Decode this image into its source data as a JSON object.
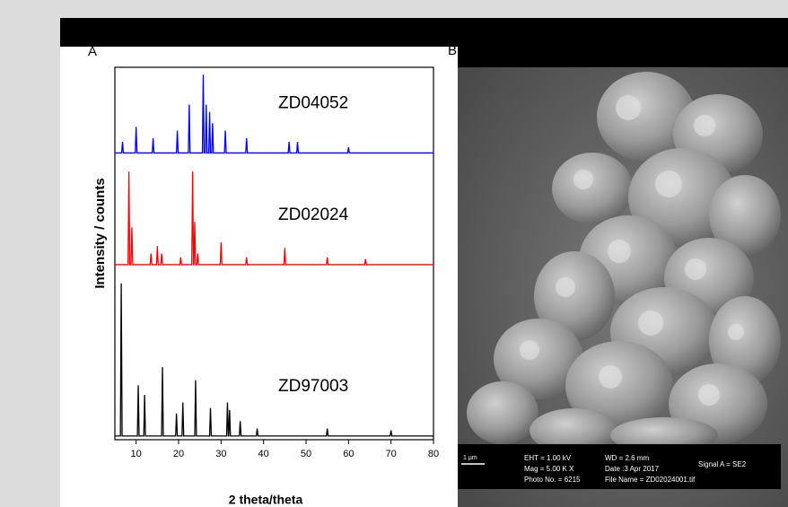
{
  "panel_labels": [
    "A",
    "B"
  ],
  "chart_data": {
    "type": "line",
    "y_label": "Intensity / counts",
    "x_label": "2 theta/theta",
    "xlim": [
      5,
      80
    ],
    "xticks": [
      10,
      20,
      30,
      40,
      50,
      60,
      70,
      80
    ],
    "ylim": [
      0,
      1
    ],
    "series": [
      {
        "name": "ZD97003",
        "color": "#000000",
        "x": [
          5,
          6.3,
          6.5,
          6.7,
          10.3,
          10.5,
          10.7,
          11.8,
          12,
          12.2,
          16,
          16.2,
          16.4,
          19.3,
          19.5,
          19.7,
          20.8,
          21,
          21.2,
          23.8,
          24,
          24.2,
          27.3,
          27.5,
          27.7,
          31.3,
          31.5,
          31.7,
          31.8,
          32,
          32.2,
          34.3,
          34.5,
          34.7,
          38.3,
          38.5,
          38.7,
          54.8,
          55,
          55.2,
          69.8,
          70,
          70.2,
          80
        ],
        "values": [
          0.01,
          0.01,
          0.42,
          0.01,
          0.01,
          0.146,
          0.01,
          0.01,
          0.12,
          0.01,
          0.01,
          0.195,
          0.01,
          0.01,
          0.07,
          0.01,
          0.01,
          0.1,
          0.01,
          0.01,
          0.16,
          0.01,
          0.01,
          0.085,
          0.01,
          0.01,
          0.1,
          0.01,
          0.01,
          0.08,
          0.01,
          0.01,
          0.05,
          0.01,
          0.01,
          0.03,
          0.01,
          0.01,
          0.03,
          0.01,
          0.01,
          0.025,
          0.01,
          0.01
        ]
      },
      {
        "name": "ZD02024",
        "color": "#ff0000",
        "x": [
          5,
          8.1,
          8.3,
          8.5,
          8.8,
          9,
          9.2,
          13.3,
          13.5,
          13.7,
          14.8,
          15,
          15.2,
          15.8,
          16,
          16.2,
          20.3,
          20.5,
          20.7,
          23.1,
          23.3,
          23.5,
          23.6,
          23.8,
          24,
          24.3,
          24.5,
          24.7,
          29.8,
          30,
          30.2,
          35.8,
          36,
          36.2,
          44.8,
          45,
          45.2,
          54.8,
          55,
          55.2,
          63.8,
          64,
          64.2,
          80
        ],
        "values": [
          0.47,
          0.47,
          0.72,
          0.47,
          0.47,
          0.57,
          0.47,
          0.47,
          0.5,
          0.47,
          0.47,
          0.52,
          0.47,
          0.47,
          0.5,
          0.47,
          0.47,
          0.49,
          0.47,
          0.47,
          0.72,
          0.47,
          0.47,
          0.585,
          0.47,
          0.47,
          0.5,
          0.47,
          0.47,
          0.53,
          0.47,
          0.47,
          0.49,
          0.47,
          0.47,
          0.515,
          0.47,
          0.47,
          0.49,
          0.47,
          0.47,
          0.485,
          0.47,
          0.47
        ]
      },
      {
        "name": "ZD04052",
        "color": "#0000ff",
        "x": [
          5,
          6.6,
          6.8,
          7,
          9.8,
          10,
          10.2,
          13.8,
          14,
          14.2,
          19.5,
          19.7,
          19.9,
          22.3,
          22.5,
          22.7,
          25.6,
          25.8,
          26,
          26.3,
          26.5,
          26.7,
          27.1,
          27.3,
          27.5,
          27.8,
          28,
          28.2,
          30.8,
          31,
          31.2,
          35.8,
          36,
          36.2,
          45.8,
          46,
          46.2,
          47.8,
          48,
          48.2,
          59.8,
          60,
          60.2,
          80
        ],
        "values": [
          0.77,
          0.77,
          0.8,
          0.77,
          0.77,
          0.84,
          0.77,
          0.77,
          0.81,
          0.77,
          0.77,
          0.83,
          0.77,
          0.77,
          0.9,
          0.77,
          0.77,
          0.98,
          0.77,
          0.77,
          0.9,
          0.77,
          0.77,
          0.88,
          0.77,
          0.77,
          0.85,
          0.77,
          0.77,
          0.83,
          0.77,
          0.77,
          0.81,
          0.77,
          0.77,
          0.8,
          0.77,
          0.77,
          0.8,
          0.77,
          0.77,
          0.785,
          0.77,
          0.77
        ]
      }
    ]
  },
  "sem_image": {
    "scale_bar": "1 µm",
    "info": [
      "EHT = 1.00 kV",
      "Mag = 5.00 K X",
      "Photo No. = 6215",
      "WD = 2.6 mm",
      "Date :3 Apr 2017",
      "File Name = ZD02024001.tif",
      "Signal A = SE2"
    ]
  }
}
